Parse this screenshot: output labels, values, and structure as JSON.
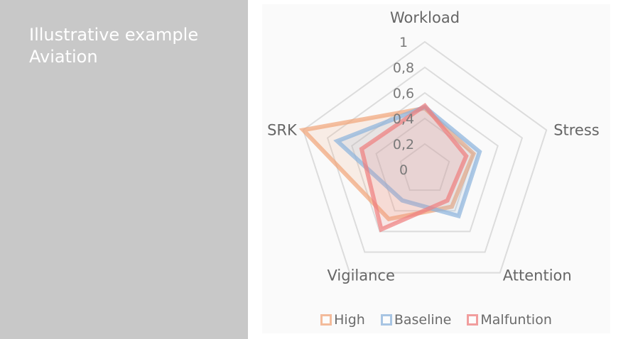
{
  "panel": {
    "title_line1": "Illustrative example",
    "title_line2": "Aviation"
  },
  "chart_data": {
    "type": "radar",
    "axes": [
      "Workload",
      "Stress",
      "Attention",
      "Vigilance",
      "SRK"
    ],
    "ticks": [
      "0",
      "0,2",
      "0,4",
      "0,6",
      "0,8",
      "1"
    ],
    "range": [
      0,
      1
    ],
    "grid": true,
    "legend_position": "bottom",
    "series": [
      {
        "name": "High",
        "color": "#f1a67c",
        "values": [
          0.48,
          0.4,
          0.36,
          0.48,
          1.0
        ]
      },
      {
        "name": "Baseline",
        "color": "#8db4dc",
        "values": [
          0.49,
          0.45,
          0.45,
          0.3,
          0.72
        ]
      },
      {
        "name": "Malfuntion",
        "color": "#ef8080",
        "values": [
          0.5,
          0.34,
          0.3,
          0.58,
          0.52
        ]
      }
    ]
  }
}
